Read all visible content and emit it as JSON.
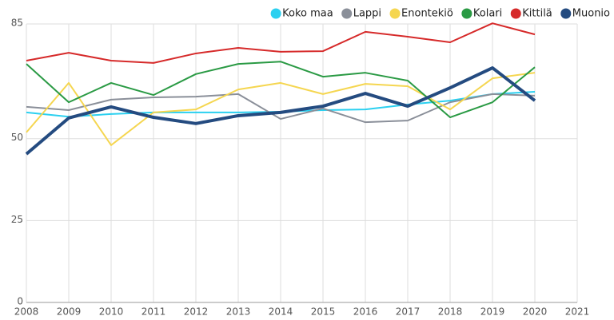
{
  "chart_data": {
    "type": "line",
    "x": [
      2008,
      2009,
      2010,
      2011,
      2012,
      2013,
      2014,
      2015,
      2016,
      2017,
      2018,
      2019,
      2020
    ],
    "xlim": [
      2008,
      2021
    ],
    "xticks": [
      2008,
      2009,
      2010,
      2011,
      2012,
      2013,
      2014,
      2015,
      2016,
      2017,
      2018,
      2019,
      2020,
      2021
    ],
    "ylim": [
      0,
      85
    ],
    "yticks": [
      0,
      25,
      50,
      85
    ],
    "grid": true,
    "legend": "top-right",
    "series": [
      {
        "name": "Koko maa",
        "color": "#2bd0f0",
        "values": [
          58.0,
          56.7,
          57.5,
          58.0,
          58.0,
          58.0,
          58.2,
          58.7,
          58.9,
          60.4,
          61.6,
          63.6,
          64.3
        ]
      },
      {
        "name": "Lappi",
        "color": "#8a8f99",
        "values": [
          59.7,
          58.7,
          61.9,
          62.6,
          62.8,
          63.6,
          56.0,
          59.2,
          55.0,
          55.5,
          61.1,
          63.6,
          63.1
        ]
      },
      {
        "name": "Enontekiö",
        "color": "#f5d650",
        "values": [
          51.9,
          67.0,
          48.0,
          58.0,
          58.9,
          65.0,
          67.0,
          63.6,
          66.7,
          66.0,
          58.9,
          68.4,
          70.1
        ]
      },
      {
        "name": "Kolari",
        "color": "#2a9a44",
        "values": [
          72.8,
          61.1,
          67.0,
          63.3,
          69.7,
          72.8,
          73.5,
          68.9,
          70.1,
          67.7,
          56.5,
          61.1,
          71.8
        ]
      },
      {
        "name": "Kittilä",
        "color": "#d62a2a",
        "values": [
          73.8,
          76.2,
          73.8,
          73.1,
          76.0,
          77.7,
          76.5,
          76.7,
          82.6,
          81.1,
          79.4,
          85.2,
          81.8
        ]
      },
      {
        "name": "Muonio",
        "color": "#244b80",
        "values": [
          45.3,
          56.3,
          59.7,
          56.5,
          54.6,
          57.0,
          58.0,
          59.9,
          63.8,
          59.9,
          65.5,
          71.6,
          61.6
        ]
      }
    ]
  }
}
